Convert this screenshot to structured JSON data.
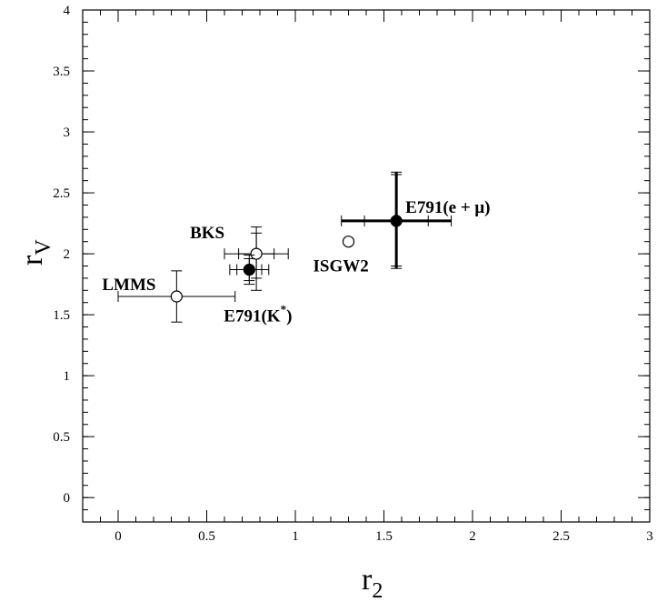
{
  "chart_data": {
    "type": "scatter",
    "title": "",
    "xlabel": {
      "main": "r",
      "sub": "2"
    },
    "ylabel": {
      "main": "r",
      "sub": "V"
    },
    "xlim": [
      -0.2,
      3.0
    ],
    "ylim": [
      -0.2,
      4.0
    ],
    "x_ticks": [
      "0",
      "0.5",
      "1",
      "1.5",
      "2",
      "2.5",
      "3"
    ],
    "y_ticks": [
      "0",
      "0.5",
      "1",
      "1.5",
      "2",
      "2.5",
      "3",
      "3.5",
      "4"
    ],
    "grid": false,
    "points": [
      {
        "label": "LMMS",
        "label_parts": [
          "LMMS"
        ],
        "x": 0.33,
        "y": 1.65,
        "marker": "open",
        "x_err": [
          0.33,
          0.33
        ],
        "y_err": [
          0.21,
          0.21
        ],
        "x_err_inner": null,
        "y_err_inner": null
      },
      {
        "label": "BKS",
        "label_parts": [
          "BKS"
        ],
        "x": 0.78,
        "y": 2.0,
        "marker": "open",
        "x_err": [
          0.18,
          0.18
        ],
        "y_err": [
          0.3,
          0.22
        ],
        "x_err_inner": [
          0.1,
          0.1
        ],
        "y_err_inner": [
          0.2,
          0.17
        ]
      },
      {
        "label": "E791(K*)",
        "label_parts": [
          "E791(K",
          "*",
          ")"
        ],
        "x": 0.74,
        "y": 1.87,
        "marker": "filled",
        "x_err": [
          0.11,
          0.11
        ],
        "y_err": [
          0.12,
          0.12
        ],
        "x_err_inner": [
          0.07,
          0.07
        ],
        "y_err_inner": [
          0.09,
          0.09
        ]
      },
      {
        "label": "ISGW2",
        "label_parts": [
          "ISGW2"
        ],
        "x": 1.3,
        "y": 2.1,
        "marker": "open",
        "x_err": null,
        "y_err": null,
        "x_err_inner": null,
        "y_err_inner": null
      },
      {
        "label": "E791(e + μ)",
        "label_parts": [
          "E791(e + μ)"
        ],
        "x": 1.57,
        "y": 2.27,
        "marker": "filled",
        "x_err": [
          0.31,
          0.31
        ],
        "y_err": [
          0.39,
          0.4
        ],
        "x_err_inner": [
          0.18,
          0.18
        ],
        "y_err_inner": [
          0.37,
          0.38
        ]
      }
    ]
  }
}
